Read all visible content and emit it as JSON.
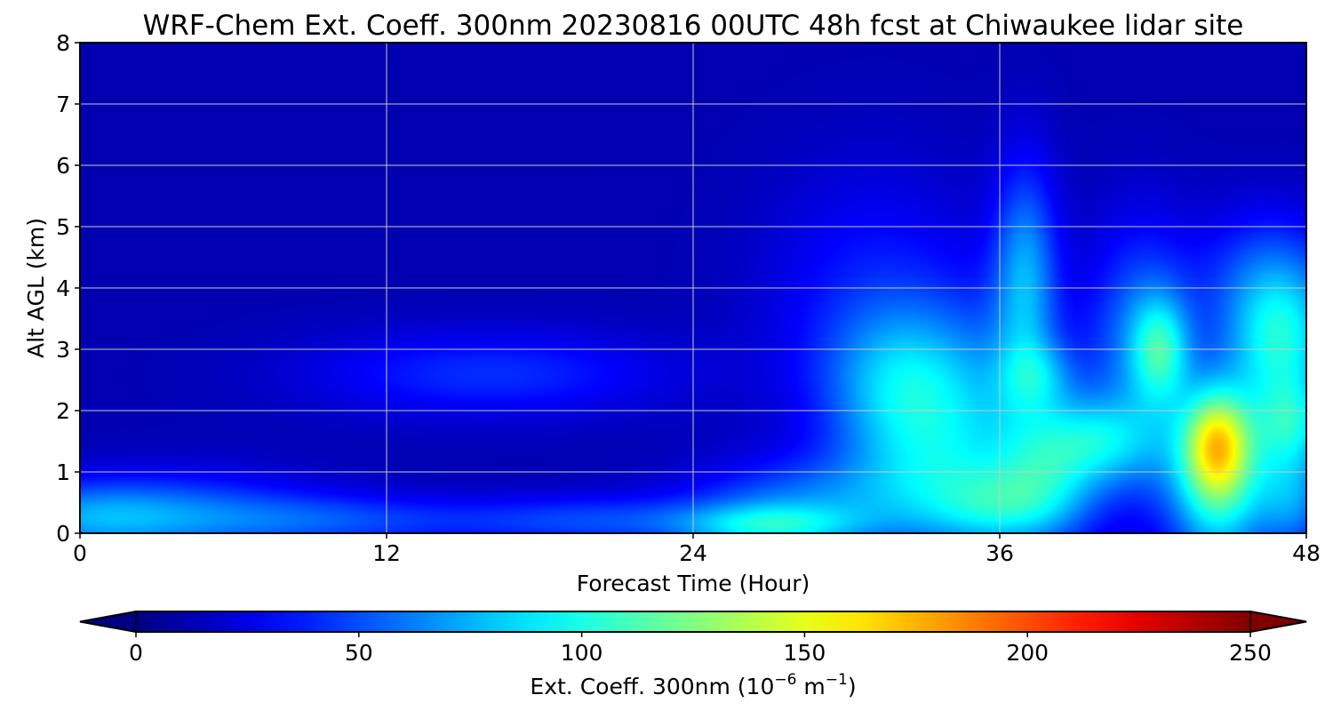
{
  "chart_data": {
    "type": "heatmap",
    "title": "WRF-Chem Ext. Coeff. 300nm  20230816 00UTC 48h fcst at Chiwaukee lidar site",
    "xlabel": "Forecast Time (Hour)",
    "ylabel": "Alt AGL (km)",
    "x_ticks": [
      "0",
      "12",
      "24",
      "36",
      "48"
    ],
    "y_ticks": [
      "0",
      "1",
      "2",
      "3",
      "4",
      "5",
      "6",
      "7",
      "8"
    ],
    "xlim": [
      0,
      48
    ],
    "ylim": [
      0,
      8
    ],
    "grid": true,
    "colormap": "jet",
    "colorbar": {
      "label_prefix": "Ext. Coeff. 300nm  (10",
      "label_exp1": "−6",
      "label_mid": " m",
      "label_exp2": "−1",
      "label_suffix": ")",
      "ticks": [
        "0",
        "50",
        "100",
        "150",
        "200",
        "250"
      ],
      "range": [
        0,
        250
      ],
      "extend": "both"
    },
    "blobs": [
      {
        "x": 0,
        "y": 0.25,
        "sx": 3,
        "sy": 0.4,
        "v": 40
      },
      {
        "x": 4,
        "y": 0.3,
        "sx": 4,
        "sy": 0.5,
        "v": 35
      },
      {
        "x": 10,
        "y": 0.2,
        "sx": 4,
        "sy": 0.3,
        "v": 30
      },
      {
        "x": 16,
        "y": 2.6,
        "sx": 5,
        "sy": 0.5,
        "v": 30
      },
      {
        "x": 20,
        "y": 0.2,
        "sx": 4,
        "sy": 0.3,
        "v": 35
      },
      {
        "x": 27,
        "y": 0.1,
        "sx": 2.5,
        "sy": 0.25,
        "v": 55
      },
      {
        "x": 28,
        "y": 0.5,
        "sx": 3,
        "sy": 0.5,
        "v": 40
      },
      {
        "x": 31,
        "y": 3.8,
        "sx": 3,
        "sy": 1.5,
        "v": 25
      },
      {
        "x": 32,
        "y": 2.5,
        "sx": 2,
        "sy": 0.8,
        "v": 40
      },
      {
        "x": 33,
        "y": 1.0,
        "sx": 2.5,
        "sy": 0.9,
        "v": 45
      },
      {
        "x": 35,
        "y": 2.2,
        "sx": 2.5,
        "sy": 1.2,
        "v": 35
      },
      {
        "x": 36,
        "y": 0.4,
        "sx": 2,
        "sy": 0.5,
        "v": 50
      },
      {
        "x": 37,
        "y": 4.2,
        "sx": 0.9,
        "sy": 1.3,
        "v": 55
      },
      {
        "x": 37.5,
        "y": 2.6,
        "sx": 1.0,
        "sy": 0.4,
        "v": 30
      },
      {
        "x": 38,
        "y": 1.1,
        "sx": 1.5,
        "sy": 0.8,
        "v": 50
      },
      {
        "x": 40,
        "y": 1.5,
        "sx": 1.5,
        "sy": 0.5,
        "v": 45
      },
      {
        "x": 41.5,
        "y": 3.2,
        "sx": 1.5,
        "sy": 1.3,
        "v": 45
      },
      {
        "x": 42.3,
        "y": 3.0,
        "sx": 0.8,
        "sy": 0.6,
        "v": 55
      },
      {
        "x": 44.5,
        "y": 1.5,
        "sx": 0.9,
        "sy": 0.6,
        "v": 85
      },
      {
        "x": 44.5,
        "y": 0.5,
        "sx": 1.2,
        "sy": 0.9,
        "v": 45
      },
      {
        "x": 45,
        "y": 1.2,
        "sx": 2.5,
        "sy": 1.0,
        "v": 50
      },
      {
        "x": 47,
        "y": 3.1,
        "sx": 1.5,
        "sy": 0.8,
        "v": 70
      },
      {
        "x": 46.5,
        "y": 4.2,
        "sx": 2,
        "sy": 0.8,
        "v": 35
      },
      {
        "x": 47.5,
        "y": 1.8,
        "sx": 1,
        "sy": 0.5,
        "v": 45
      },
      {
        "x": 47.5,
        "y": 0.5,
        "sx": 1,
        "sy": 0.6,
        "v": 35
      }
    ]
  }
}
